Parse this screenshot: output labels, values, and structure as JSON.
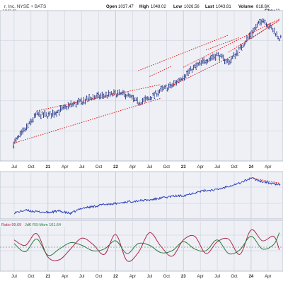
{
  "header": {
    "title": "r, Inc. NYSE + BATS",
    "open_label": "Open",
    "open_value": "1037.47",
    "high_label": "High",
    "high_value": "1048.02",
    "low_label": "Low",
    "low_value": "1026.56",
    "last_label": "Last",
    "last_value": "1043.81",
    "volume_label": "Volume",
    "volume_value": "818.6K",
    "chg_label": "Chg",
    "chg_value": "+11",
    "price_tag": "1043.81"
  },
  "colors": {
    "panel_bg": "#eef0f5",
    "price_bars": "#2b3a8c",
    "trend_lines": "#e02020",
    "rs_line": "#2438b8",
    "rs_ratio": "#b0284c",
    "rs_momentum": "#2a7a3a",
    "grid": "#c8ccd8"
  },
  "chart_data": [
    {
      "type": "ohlc",
      "panel": "price",
      "x_tick_labels": [
        "Jul",
        "Oct",
        "21",
        "Apr",
        "Jul",
        "Oct",
        "22",
        "Apr",
        "Jul",
        "Oct",
        "23",
        "Apr",
        "Jul",
        "Oct",
        "24",
        "Apr"
      ],
      "x": [
        "2020-07",
        "2020-09",
        "2020-11",
        "2021-01",
        "2021-03",
        "2021-05",
        "2021-07",
        "2021-09",
        "2021-11",
        "2022-01",
        "2022-03",
        "2022-05",
        "2022-07",
        "2022-09",
        "2022-11",
        "2023-01",
        "2023-03",
        "2023-05",
        "2023-07",
        "2023-09",
        "2023-11",
        "2024-01",
        "2024-03",
        "2024-05",
        "2024-06"
      ],
      "values": [
        0.02,
        0.14,
        0.27,
        0.26,
        0.3,
        0.35,
        0.38,
        0.42,
        0.43,
        0.45,
        0.44,
        0.37,
        0.41,
        0.48,
        0.52,
        0.6,
        0.68,
        0.74,
        0.79,
        0.72,
        0.84,
        0.97,
        1.1,
        1.0,
        0.93
      ],
      "trend_lines": [
        {
          "x": [
            "2020-07",
            "2022-09"
          ],
          "y": [
            0.02,
            0.41
          ]
        },
        {
          "x": [
            "2020-11",
            "2022-09"
          ],
          "y": [
            0.3,
            0.53
          ]
        },
        {
          "x": [
            "2022-07",
            "2022-11"
          ],
          "y": [
            0.6,
            0.69
          ]
        },
        {
          "x": [
            "2022-11",
            "2023-11"
          ],
          "y": [
            0.52,
            0.81
          ]
        },
        {
          "x": [
            "2022-05",
            "2023-09"
          ],
          "y": [
            0.65,
            0.96
          ]
        },
        {
          "x": [
            "2023-05",
            "2023-11"
          ],
          "y": [
            0.83,
            0.94
          ]
        },
        {
          "x": [
            "2023-01",
            "2024-06"
          ],
          "y": [
            0.68,
            1.1
          ]
        },
        {
          "x": [
            "2023-09",
            "2024-06"
          ],
          "y": [
            0.81,
            1.09
          ]
        },
        {
          "x": [
            "2024-01",
            "2024-06"
          ],
          "y": [
            0.93,
            1.09
          ]
        }
      ]
    },
    {
      "type": "line",
      "panel": "relative-strength",
      "x": [
        "2020-07",
        "2020-09",
        "2020-11",
        "2021-01",
        "2021-03",
        "2021-05",
        "2021-07",
        "2021-09",
        "2021-11",
        "2022-01",
        "2022-03",
        "2022-05",
        "2022-07",
        "2022-09",
        "2022-11",
        "2023-01",
        "2023-03",
        "2023-05",
        "2023-07",
        "2023-09",
        "2023-11",
        "2024-01",
        "2024-03",
        "2024-05",
        "2024-06"
      ],
      "values": [
        0.05,
        0.12,
        0.08,
        0.06,
        0.1,
        0.03,
        0.18,
        0.22,
        0.28,
        0.3,
        0.35,
        0.38,
        0.4,
        0.45,
        0.5,
        0.52,
        0.6,
        0.66,
        0.68,
        0.78,
        0.86,
        1.0,
        0.9,
        0.84,
        0.82
      ],
      "trend_line": {
        "x": [
          "2024-01",
          "2024-06"
        ],
        "y": [
          1.0,
          0.86
        ]
      }
    },
    {
      "type": "line",
      "panel": "rrg",
      "legend_text": "Ratio 99.69",
      "legend_text_2": "JdK RS-Mom 101.64",
      "x": [
        "2020-07",
        "2020-09",
        "2020-11",
        "2021-01",
        "2021-03",
        "2021-05",
        "2021-07",
        "2021-09",
        "2021-11",
        "2022-01",
        "2022-03",
        "2022-05",
        "2022-07",
        "2022-09",
        "2022-11",
        "2023-01",
        "2023-03",
        "2023-05",
        "2023-07",
        "2023-09",
        "2023-11",
        "2024-01",
        "2024-03",
        "2024-05",
        "2024-06"
      ],
      "series": [
        {
          "name": "Ratio",
          "values": [
            100.8,
            100.2,
            101.5,
            98.9,
            98.6,
            99.8,
            101.0,
            100.3,
            99.2,
            101.4,
            98.5,
            99.4,
            101.6,
            100.1,
            99.0,
            100.8,
            101.2,
            99.3,
            100.6,
            100.9,
            99.2,
            101.9,
            100.7,
            101.2,
            99.7
          ]
        },
        {
          "name": "JdK RS-Mom",
          "values": [
            100.4,
            99.5,
            100.9,
            99.1,
            99.8,
            100.5,
            100.2,
            99.6,
            99.8,
            100.7,
            99.3,
            100.4,
            100.2,
            99.4,
            99.6,
            100.6,
            99.8,
            99.6,
            100.8,
            99.3,
            99.7,
            101.2,
            99.8,
            100.3,
            101.6
          ]
        }
      ],
      "ylim": [
        97.5,
        102.5
      ],
      "baseline": 100
    }
  ]
}
